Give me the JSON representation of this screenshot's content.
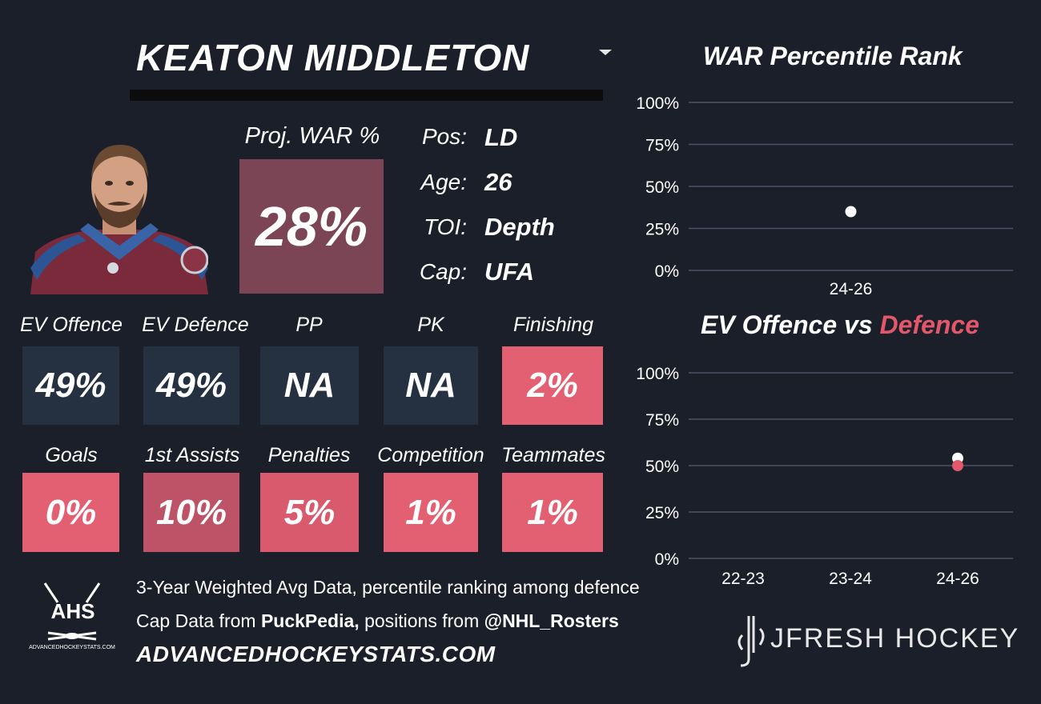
{
  "player": {
    "name": "KEATON MIDDLETON",
    "proj_war_label": "Proj. WAR %",
    "proj_war_value": "28%",
    "info": [
      {
        "key": "Pos:",
        "value": "LD"
      },
      {
        "key": "Age:",
        "value": "26"
      },
      {
        "key": "TOI:",
        "value": "Depth"
      },
      {
        "key": "Cap:",
        "value": "UFA"
      }
    ]
  },
  "tiles_row1": [
    {
      "label": "EV Offence",
      "value": "49%"
    },
    {
      "label": "EV Defence",
      "value": "49%"
    },
    {
      "label": "PP",
      "value": "NA"
    },
    {
      "label": "PK",
      "value": "NA"
    },
    {
      "label": "Finishing",
      "value": "2%"
    }
  ],
  "tiles_row2": [
    {
      "label": "Goals",
      "value": "0%"
    },
    {
      "label": "1st Assists",
      "value": "10%"
    },
    {
      "label": "Penalties",
      "value": "5%"
    },
    {
      "label": "Competition",
      "value": "1%"
    },
    {
      "label": "Teammates",
      "value": "1%"
    }
  ],
  "colors": {
    "background": "#1b1f2a",
    "tile_dark": "#253040",
    "tile_pink": "#e35f72",
    "tile_mauve": "#be5266",
    "proj_box": "#7b4555",
    "defence_accent": "#e3576b",
    "gridline": "#4a5468"
  },
  "footer": {
    "line1": "3-Year Weighted Avg Data, percentile ranking among defence",
    "line2_prefix": "Cap Data from ",
    "line2_bold1": "PuckPedia,",
    "line2_mid": " positions from ",
    "line2_bold2": "@NHL_Rosters",
    "site": "ADVANCEDHOCKEYSTATS.COM",
    "ahs_logo_text": "AHS",
    "ahs_logo_sub": "ADVANCEDHOCKEYSTATS.COM",
    "brand": "JFRESH HOCKEY"
  },
  "chart_data": [
    {
      "type": "scatter",
      "title": "WAR Percentile Rank",
      "categories": [
        "24-26"
      ],
      "series": [
        {
          "values": [
            35
          ],
          "color": "#ffffff"
        }
      ],
      "ylim": [
        0,
        100
      ],
      "yticks": [
        "0%",
        "25%",
        "50%",
        "75%",
        "100%"
      ],
      "grid": true
    },
    {
      "type": "scatter",
      "title": "EV Offence vs Defence",
      "title_parts": [
        "EV Offence vs ",
        "Defence"
      ],
      "categories": [
        "22-23",
        "23-24",
        "24-26"
      ],
      "series": [
        {
          "values": [
            null,
            null,
            54
          ],
          "color": "#ffffff"
        },
        {
          "values": [
            null,
            null,
            50
          ],
          "color": "#e3576b"
        }
      ],
      "ylim": [
        0,
        100
      ],
      "yticks": [
        "0%",
        "25%",
        "50%",
        "75%",
        "100%"
      ],
      "grid": true
    }
  ]
}
